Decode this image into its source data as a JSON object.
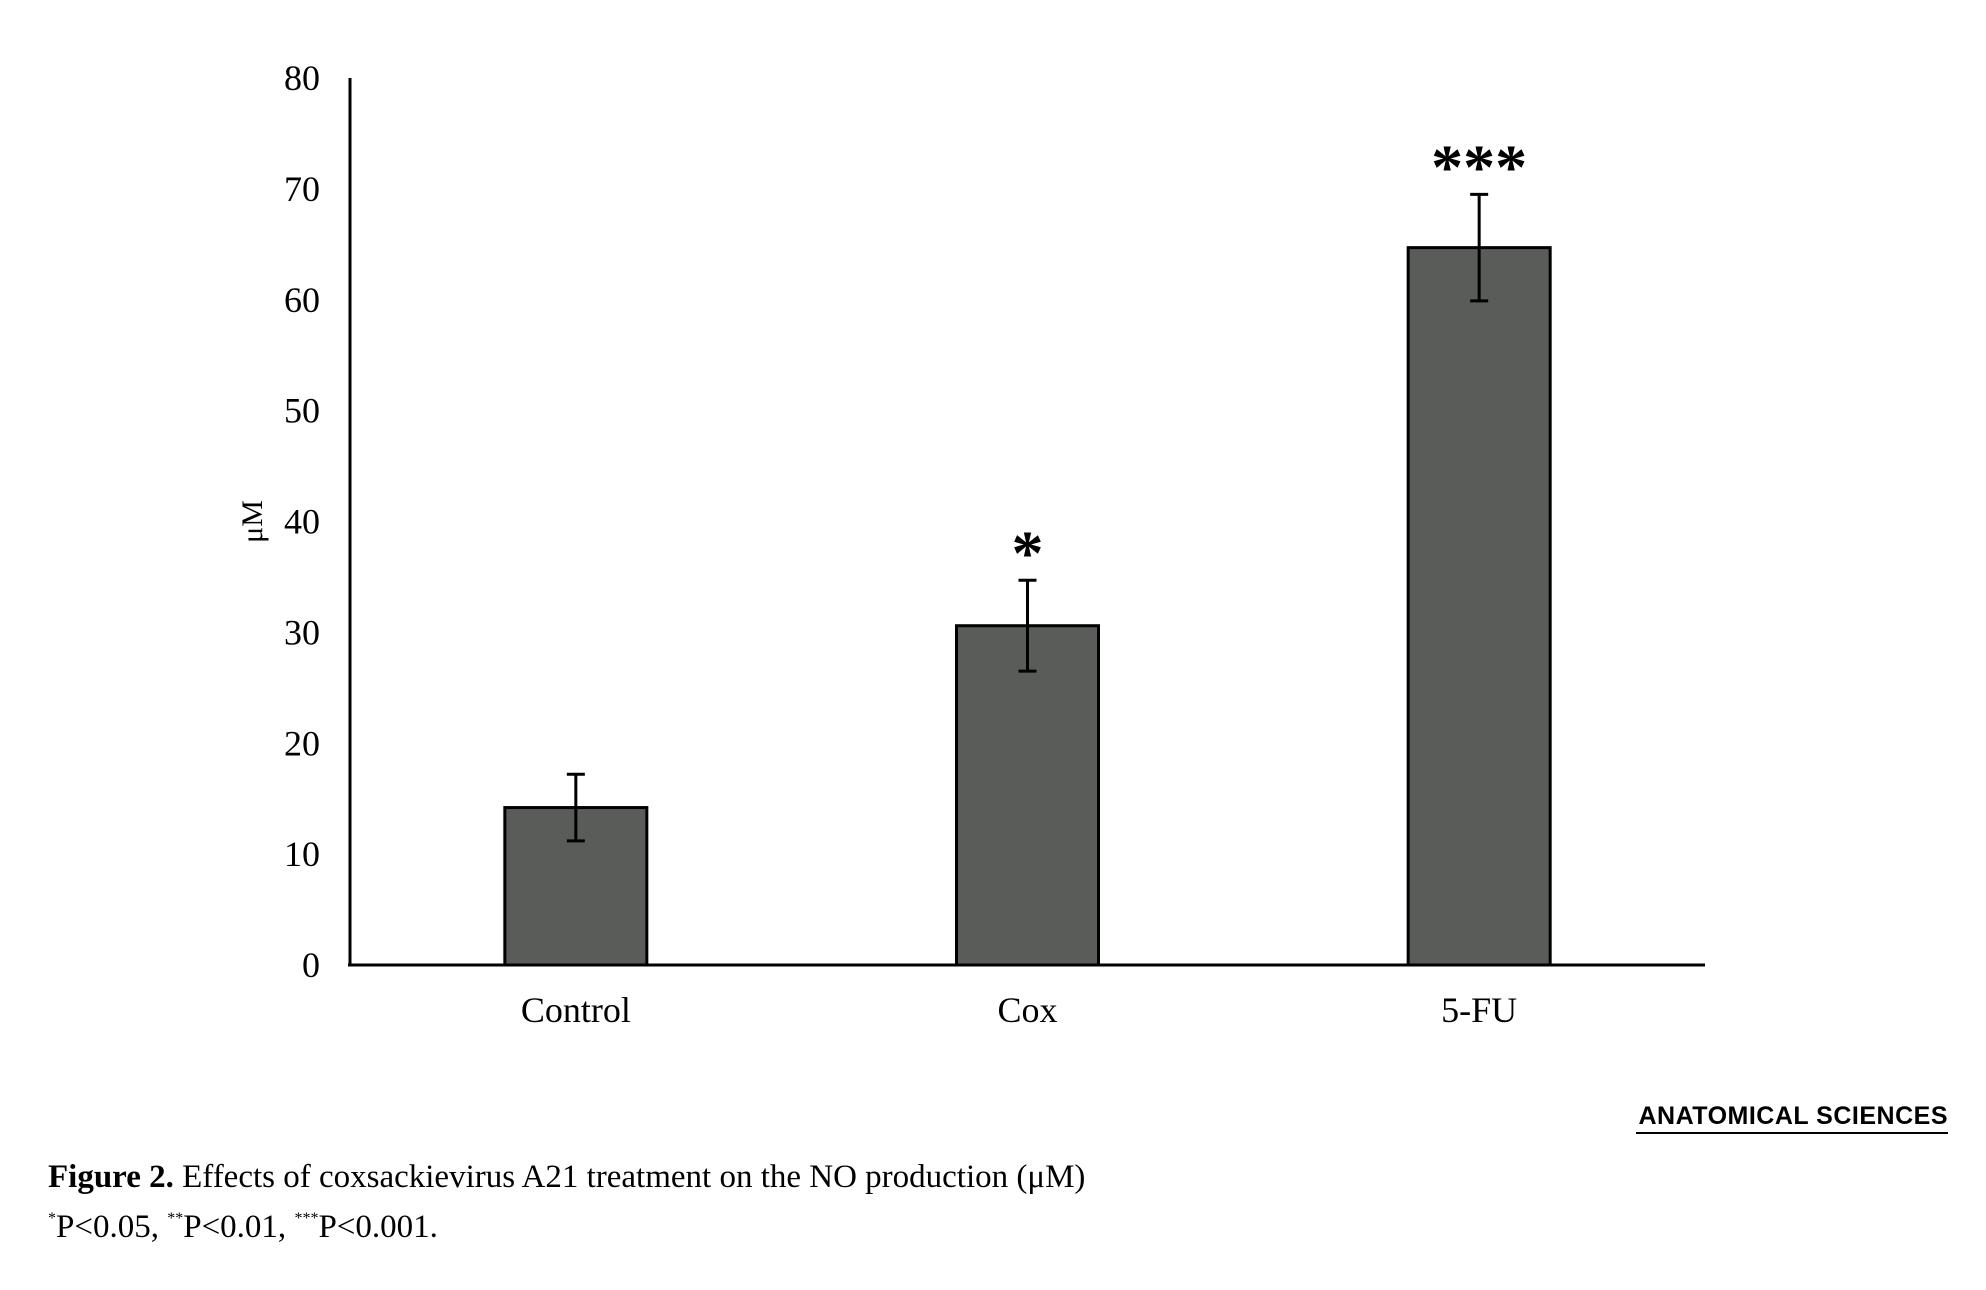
{
  "chart_data": {
    "type": "bar",
    "categories": [
      "Control",
      "Cox",
      "5-FU"
    ],
    "values": [
      14.2,
      30.6,
      64.7
    ],
    "errors": [
      3.0,
      4.1,
      4.8
    ],
    "significance": [
      "",
      "*",
      "***"
    ],
    "ylabel": "μM",
    "ylim": [
      0,
      80
    ],
    "yticks": [
      "0",
      "10",
      "20",
      "30",
      "40",
      "50",
      "60",
      "70",
      "80"
    ],
    "bar_color": "#5a5c5a",
    "grid": false,
    "legend": "none"
  },
  "logo": {
    "text": "ANATOMICAL SCIENCES"
  },
  "caption": {
    "label": "Figure 2.",
    "text": " Effects of coxsackievirus A21 treatment on the NO production (μM)",
    "pvalues": [
      {
        "stars": "*",
        "text": "P<0.05, "
      },
      {
        "stars": "**",
        "text": "P<0.01, "
      },
      {
        "stars": "***",
        "text": "P<0.001."
      }
    ]
  }
}
